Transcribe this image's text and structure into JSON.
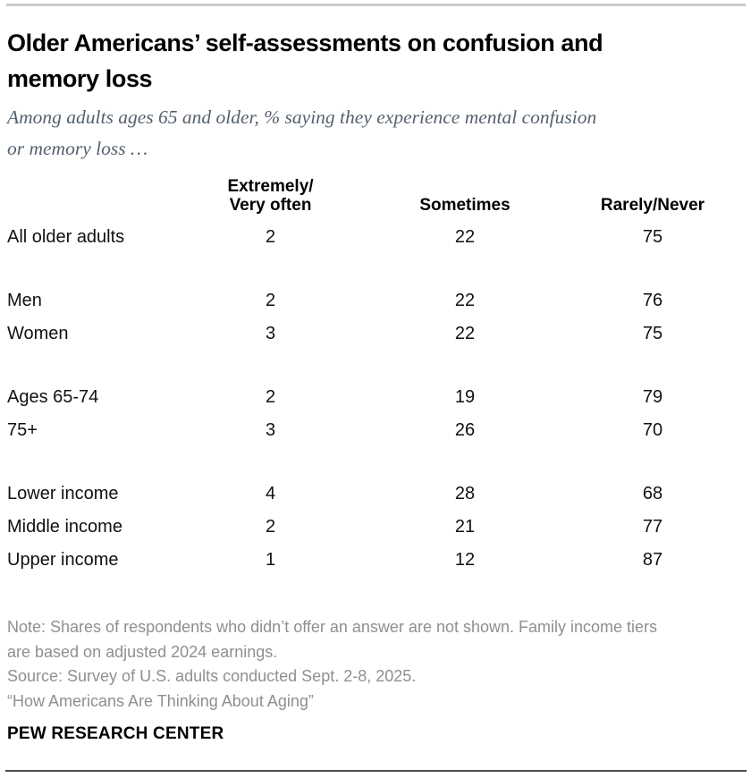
{
  "page": {
    "background": "#ffffff",
    "rule_top_color": "#cbcbcb",
    "rule_bottom_color": "#4c4c4c",
    "title_color": "#000000",
    "subtitle_color": "#55606e",
    "body_text_color": "#111111",
    "note_color": "#8f8f8f"
  },
  "header": {
    "title_lines": [
      "Older Americans’ self-assessments on confusion and",
      "memory loss"
    ],
    "subtitle_lines": [
      "Among adults ages 65 and older, % saying they experience mental confusion",
      "or memory loss …"
    ]
  },
  "chart_data": {
    "type": "table",
    "title": "Older Americans’ self-assessments on confusion and memory loss",
    "subtitle": "Among adults ages 65 and older, % saying they experience mental confusion or memory loss …",
    "columns": [
      "Extremely/\nVery often",
      "Sometimes",
      "Rarely/Never"
    ],
    "rows": [
      {
        "label": "All older adults",
        "values": [
          2,
          22,
          75
        ]
      },
      {
        "label": "Men",
        "values": [
          2,
          22,
          76
        ]
      },
      {
        "label": "Women",
        "values": [
          3,
          22,
          75
        ]
      },
      {
        "label": "Ages 65-74",
        "values": [
          2,
          19,
          79
        ]
      },
      {
        "label": "75+",
        "values": [
          3,
          26,
          70
        ]
      },
      {
        "label": "Lower income",
        "values": [
          4,
          28,
          68
        ]
      },
      {
        "label": "Middle income",
        "values": [
          2,
          21,
          77
        ]
      },
      {
        "label": "Upper income",
        "values": [
          1,
          12,
          87
        ]
      }
    ],
    "note": "Note: Shares of respondents who didn’t offer an answer are not shown. Family income tiers are based on adjusted 2024 earnings.",
    "source": "Source: Survey of U.S. adults conducted Sept. 2-8, 2025.",
    "report": "“How Americans Are Thinking About Aging”"
  },
  "footer": {
    "note_lines": [
      "Note: Shares of respondents who didn’t offer an answer are not shown. Family income tiers",
      "are based on adjusted 2024 earnings."
    ],
    "source_line": "Source: Survey of U.S. adults conducted Sept. 2-8, 2025.",
    "report_line": "“How Americans Are Thinking About Aging”",
    "brand": "PEW RESEARCH CENTER"
  }
}
